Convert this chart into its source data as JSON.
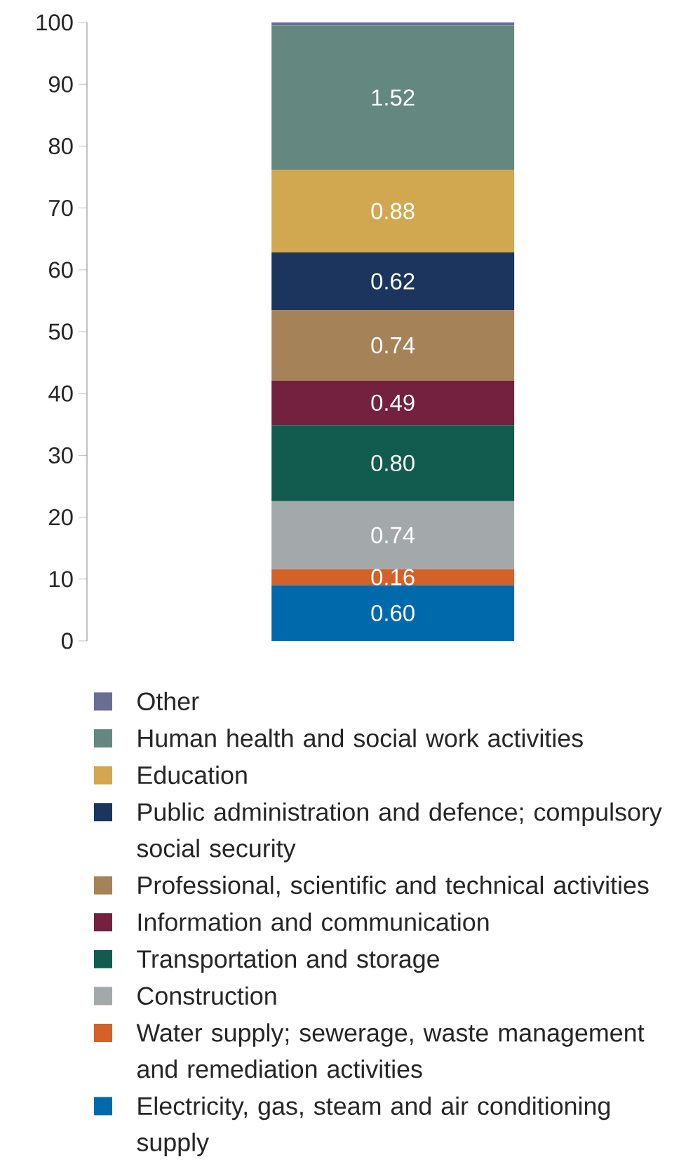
{
  "chart_data": {
    "type": "bar",
    "stacked": true,
    "categories": [
      null
    ],
    "ylim": [
      0,
      100
    ],
    "yticks": [
      0,
      10,
      20,
      30,
      40,
      50,
      60,
      70,
      80,
      90,
      100
    ],
    "tick_labels": "y",
    "legend": "bottom",
    "series": [
      {
        "name": "Electricity, gas, steam and air conditioning supply",
        "color": "#0069ac",
        "values": [
          9.0
        ]
      },
      {
        "name": "Water supply; sewerage, waste management and remediation activities",
        "color": "#d36128",
        "values": [
          2.6
        ]
      },
      {
        "name": "Construction",
        "color": "#a3a9ab",
        "values": [
          11.0
        ]
      },
      {
        "name": "Transportation and storage",
        "color": "#115b4f",
        "values": [
          12.3
        ]
      },
      {
        "name": "Information and communication",
        "color": "#74213f",
        "values": [
          7.2
        ]
      },
      {
        "name": "Professional, scientific and technical activities",
        "color": "#a68258",
        "values": [
          11.4
        ]
      },
      {
        "name": "Public administration and defence; compulsory social security",
        "color": "#1c355e",
        "values": [
          9.3
        ]
      },
      {
        "name": "Education",
        "color": "#d1a74f",
        "values": [
          13.4
        ]
      },
      {
        "name": "Human health and social work activities",
        "color": "#64887f",
        "values": [
          23.3
        ]
      },
      {
        "name": "Other",
        "color": "#696e95",
        "values": [
          0.5
        ]
      }
    ],
    "annotations": [
      "0.60",
      "0.16",
      "0.74",
      "0.80",
      "0.49",
      "0.74",
      "0.62",
      "0.88",
      "1.52"
    ]
  }
}
